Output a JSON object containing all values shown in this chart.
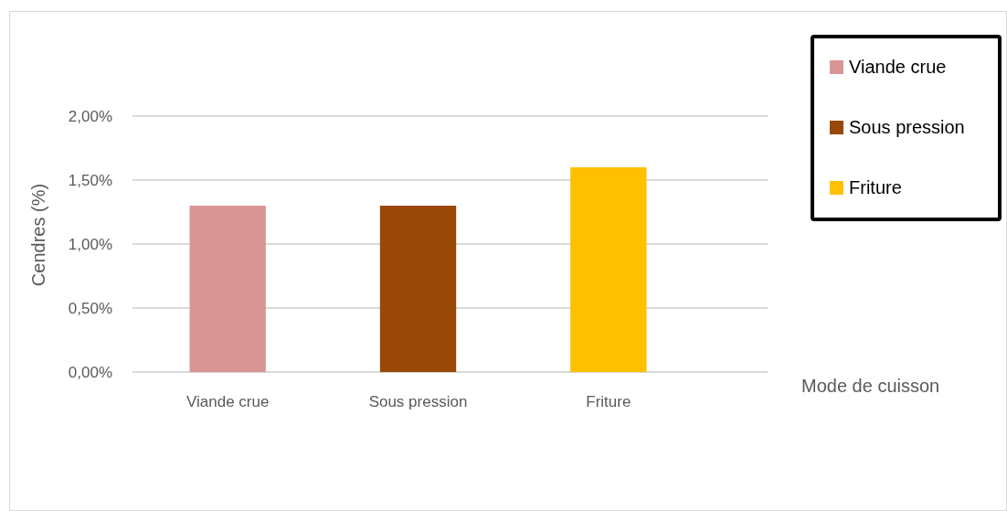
{
  "chart_data": {
    "type": "bar",
    "categories": [
      "Viande crue",
      "Sous pression",
      "Friture"
    ],
    "series": [
      {
        "name": "Viande crue",
        "color": "#d99594",
        "values": [
          1.3,
          null,
          null
        ]
      },
      {
        "name": "Sous pression",
        "color": "#984807",
        "values": [
          null,
          1.3,
          null
        ]
      },
      {
        "name": "Friture",
        "color": "#ffc000",
        "values": [
          null,
          null,
          1.6
        ]
      }
    ],
    "ylim": [
      0,
      2
    ],
    "yticks": [
      {
        "value": 0,
        "label": "0,00%"
      },
      {
        "value": 0.5,
        "label": "0,50%"
      },
      {
        "value": 1,
        "label": "1,00%"
      },
      {
        "value": 1.5,
        "label": "1,50%"
      },
      {
        "value": 2,
        "label": "2,00%"
      }
    ],
    "ylabel": "Cendres (%)",
    "xlabel": "Mode de cuisson",
    "grid": "y",
    "legend": "top right"
  }
}
